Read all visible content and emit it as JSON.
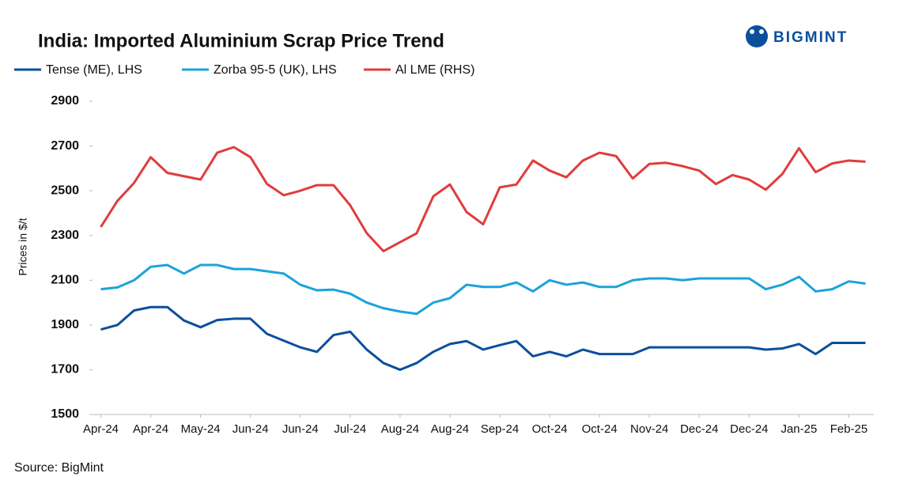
{
  "logo": "BIGMINT",
  "source": "Source: BigMint",
  "chart_data": {
    "type": "line",
    "title": "India: Imported Aluminium Scrap Price Trend",
    "y_label": "Prices in $/t",
    "categories": [
      "Apr-24",
      null,
      null,
      "Apr-24",
      null,
      null,
      "May-24",
      null,
      null,
      "Jun-24",
      null,
      null,
      "Jun-24",
      null,
      null,
      "Jul-24",
      null,
      null,
      "Aug-24",
      null,
      null,
      "Aug-24",
      null,
      null,
      "Sep-24",
      null,
      null,
      "Oct-24",
      null,
      null,
      "Oct-24",
      null,
      null,
      "Nov-24",
      null,
      null,
      "Dec-24",
      null,
      null,
      "Dec-24",
      null,
      null,
      "Jan-25",
      null,
      null,
      "Feb-25",
      null
    ],
    "series": [
      {
        "name": "Tense (ME), LHS",
        "color": "#0b4f9c",
        "values": [
          1880,
          1900,
          1965,
          1980,
          1980,
          1920,
          1890,
          1922,
          1928,
          1928,
          1860,
          1830,
          1800,
          1780,
          1855,
          1870,
          1790,
          1730,
          1700,
          1730,
          1780,
          1815,
          1828,
          1790,
          1810,
          1828,
          1760,
          1780,
          1760,
          1790,
          1770,
          1770,
          1770,
          1800,
          1800,
          1800,
          1800,
          1800,
          1800,
          1800,
          1790,
          1795,
          1815,
          1770,
          1820,
          1820,
          1820
        ]
      },
      {
        "name": "Zorba 95-5 (UK), LHS",
        "color": "#1ba3d8",
        "values": [
          2060,
          2068,
          2100,
          2160,
          2168,
          2130,
          2168,
          2168,
          2150,
          2150,
          2140,
          2130,
          2080,
          2055,
          2058,
          2040,
          2000,
          1975,
          1960,
          1950,
          2000,
          2020,
          2080,
          2070,
          2070,
          2090,
          2050,
          2100,
          2080,
          2090,
          2070,
          2070,
          2100,
          2108,
          2108,
          2100,
          2108,
          2108,
          2108,
          2108,
          2060,
          2080,
          2115,
          2050,
          2060,
          2095,
          2085
        ]
      },
      {
        "name": "Al LME (RHS)",
        "color": "#e03c3c",
        "values": [
          2338,
          2455,
          2535,
          2650,
          2580,
          2565,
          2550,
          2670,
          2695,
          2650,
          2530,
          2480,
          2500,
          2525,
          2525,
          2435,
          2310,
          2230,
          2270,
          2310,
          2475,
          2528,
          2405,
          2350,
          2515,
          2528,
          2635,
          2590,
          2560,
          2635,
          2670,
          2655,
          2555,
          2620,
          2625,
          2610,
          2590,
          2530,
          2570,
          2550,
          2505,
          2575,
          2690,
          2583,
          2622,
          2635,
          2630
        ]
      }
    ],
    "ylim": [
      1500,
      2900
    ],
    "yticks": [
      1500,
      1700,
      1900,
      2100,
      2300,
      2500,
      2700,
      2900
    ]
  }
}
